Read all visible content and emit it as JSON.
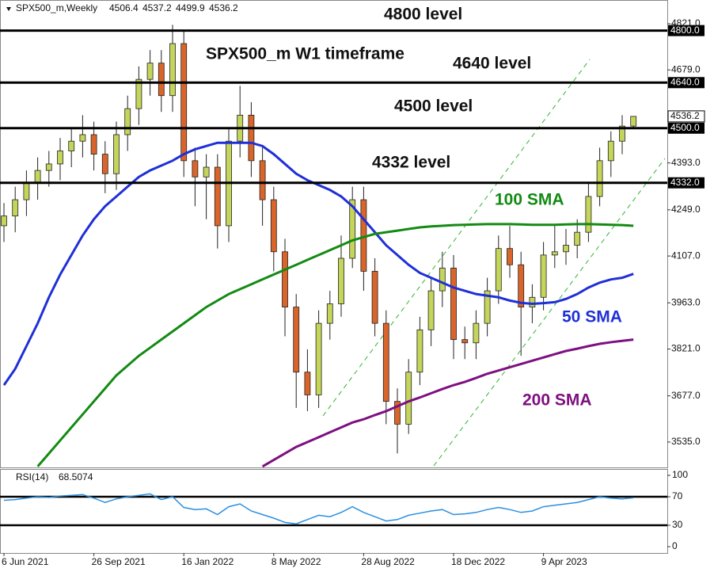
{
  "chart_data": [
    {
      "type": "candlestick",
      "title": "SPX500_m,Weekly",
      "categories": [
        "6 Jun 2021",
        null,
        null,
        null,
        null,
        null,
        null,
        null,
        "26 Sep 2021",
        null,
        null,
        null,
        null,
        null,
        null,
        null,
        "16 Jan 2022",
        null,
        null,
        null,
        null,
        null,
        null,
        null,
        "8 May 2022",
        null,
        null,
        null,
        null,
        null,
        null,
        null,
        "28 Aug 2022",
        null,
        null,
        null,
        null,
        null,
        null,
        null,
        "18 Dec 2022",
        null,
        null,
        null,
        null,
        null,
        null,
        null,
        "9 Apr 2023",
        null,
        null,
        null,
        null,
        null,
        null,
        null,
        null
      ],
      "open": [
        4200,
        4230,
        4280,
        4330,
        4370,
        4390,
        4430,
        4460,
        4480,
        4420,
        4360,
        4480,
        4560,
        4650,
        4700,
        4600,
        4760,
        4400,
        4350,
        4380,
        4200,
        4460,
        4540,
        4400,
        4280,
        4120,
        3950,
        3750,
        3680,
        3900,
        3960,
        4100,
        4280,
        4060,
        3900,
        3660,
        3590,
        3750,
        3880,
        4000,
        4070,
        3850,
        3840,
        3900,
        4000,
        4130,
        4080,
        3950,
        3980,
        4110,
        4120,
        4140,
        4180,
        4290,
        4400,
        4460,
        4506.4
      ],
      "high": [
        4270,
        4320,
        4370,
        4410,
        4430,
        4470,
        4500,
        4540,
        4520,
        4460,
        4520,
        4600,
        4690,
        4740,
        4740,
        4818,
        4800,
        4440,
        4420,
        4420,
        4500,
        4630,
        4580,
        4440,
        4320,
        4160,
        3990,
        3820,
        3940,
        4000,
        4170,
        4320,
        4320,
        4100,
        3940,
        3700,
        3790,
        3920,
        4040,
        4120,
        4110,
        3890,
        3940,
        4040,
        4170,
        4200,
        4120,
        4020,
        4150,
        4200,
        4190,
        4220,
        4330,
        4440,
        4490,
        4540,
        4537.2
      ],
      "low": [
        4150,
        4180,
        4230,
        4280,
        4320,
        4340,
        4380,
        4410,
        4370,
        4300,
        4310,
        4430,
        4510,
        4600,
        4550,
        4550,
        4350,
        4260,
        4220,
        4130,
        4150,
        4410,
        4350,
        4200,
        4060,
        3860,
        3640,
        3630,
        3640,
        3850,
        3920,
        4070,
        4000,
        3860,
        3590,
        3500,
        3560,
        3710,
        3830,
        3950,
        3790,
        3790,
        3790,
        3860,
        3960,
        4040,
        3800,
        3900,
        3940,
        4070,
        4080,
        4100,
        4150,
        4260,
        4350,
        4420,
        4499.9
      ],
      "close": [
        4230,
        4280,
        4330,
        4370,
        4390,
        4430,
        4460,
        4480,
        4420,
        4360,
        4480,
        4560,
        4650,
        4700,
        4600,
        4760,
        4400,
        4350,
        4380,
        4200,
        4460,
        4540,
        4400,
        4280,
        4120,
        3950,
        3750,
        3680,
        3900,
        3960,
        4100,
        4280,
        4060,
        3900,
        3660,
        3590,
        3750,
        3880,
        4000,
        4070,
        3850,
        3840,
        3900,
        4000,
        4130,
        4080,
        3950,
        3980,
        4110,
        4120,
        4140,
        4180,
        4290,
        4400,
        4460,
        4506.4,
        4536.2
      ],
      "up_color": "#c5d45a",
      "down_color": "#d9652a",
      "series": [
        {
          "name": "50 SMA",
          "color": "#1f2fd8",
          "values": [
            3710,
            3760,
            3830,
            3900,
            3980,
            4050,
            4110,
            4170,
            4220,
            4260,
            4290,
            4320,
            4350,
            4370,
            4385,
            4400,
            4420,
            4435,
            4445,
            4455,
            4455,
            4455,
            4455,
            4445,
            4420,
            4390,
            4360,
            4340,
            4325,
            4310,
            4290,
            4260,
            4220,
            4180,
            4140,
            4110,
            4080,
            4055,
            4040,
            4025,
            4010,
            4000,
            3990,
            3985,
            3980,
            3970,
            3963,
            3960,
            3962,
            3965,
            3975,
            3990,
            4010,
            4025,
            4035,
            4040,
            4052
          ]
        },
        {
          "name": "100 SMA",
          "color": "#138a13",
          "values": [
            null,
            null,
            null,
            3460,
            3500,
            3540,
            3580,
            3620,
            3660,
            3700,
            3740,
            3770,
            3800,
            3825,
            3850,
            3875,
            3900,
            3925,
            3950,
            3970,
            3990,
            4005,
            4020,
            4035,
            4050,
            4065,
            4080,
            4095,
            4110,
            4125,
            4140,
            4155,
            4165,
            4175,
            4180,
            4185,
            4190,
            4195,
            4198,
            4200,
            4202,
            4203,
            4204,
            4205,
            4205,
            4205,
            4204,
            4203,
            4203,
            4203,
            4204,
            4205,
            4205,
            4204,
            4203,
            4202,
            4200
          ]
        },
        {
          "name": "200 SMA",
          "color": "#7d1080",
          "values": [
            null,
            null,
            null,
            null,
            null,
            null,
            null,
            null,
            null,
            null,
            null,
            null,
            null,
            null,
            null,
            null,
            null,
            null,
            null,
            null,
            null,
            null,
            null,
            3460,
            3480,
            3500,
            3520,
            3535,
            3550,
            3565,
            3580,
            3595,
            3605,
            3618,
            3630,
            3645,
            3660,
            3672,
            3685,
            3698,
            3710,
            3720,
            3732,
            3745,
            3755,
            3765,
            3775,
            3785,
            3795,
            3805,
            3815,
            3822,
            3830,
            3837,
            3842,
            3846,
            3850
          ]
        }
      ],
      "levels": [
        {
          "value": 4800,
          "label": "4800.0"
        },
        {
          "value": 4640,
          "label": "4640.0"
        },
        {
          "value": 4500,
          "label": "4500.0"
        },
        {
          "value": 4332,
          "label": "4332.0"
        }
      ],
      "last_price_label": "4536.2",
      "annotations": [
        {
          "text": "4800 level",
          "color": "#111111"
        },
        {
          "text": "SPX500_m W1 timeframe",
          "color": "#111111"
        },
        {
          "text": "4640 level",
          "color": "#111111"
        },
        {
          "text": "4500 level",
          "color": "#111111"
        },
        {
          "text": "4332 level",
          "color": "#111111"
        },
        {
          "text": "100 SMA",
          "color": "#138a13"
        },
        {
          "text": "50 SMA",
          "color": "#1f2fd8"
        },
        {
          "text": "200 SMA",
          "color": "#7d1080"
        }
      ],
      "ylim": [
        3457,
        4894
      ],
      "yticks": [
        {
          "value": 4821,
          "label": "4821.0"
        },
        {
          "value": 4679,
          "label": "4679.0"
        },
        {
          "value": 4393,
          "label": "4393.0"
        },
        {
          "value": 4249,
          "label": "4249.0"
        },
        {
          "value": 4107,
          "label": "4107.0"
        },
        {
          "value": 3963,
          "label": "3963.0"
        },
        {
          "value": 3821,
          "label": "3821.0"
        },
        {
          "value": 3677,
          "label": "3677.0"
        },
        {
          "value": 3535,
          "label": "3535.0"
        }
      ]
    },
    {
      "type": "line",
      "title": "RSI(14)",
      "color": "#2b8fe0",
      "values": [
        65,
        66,
        68,
        70,
        69,
        71,
        72,
        73,
        68,
        62,
        67,
        70,
        72,
        74,
        66,
        70,
        55,
        52,
        53,
        45,
        56,
        60,
        50,
        45,
        40,
        34,
        32,
        38,
        44,
        42,
        48,
        56,
        48,
        42,
        36,
        38,
        44,
        47,
        50,
        52,
        45,
        46,
        48,
        52,
        55,
        52,
        48,
        50,
        56,
        58,
        60,
        62,
        66,
        70,
        68,
        67,
        68.5074
      ],
      "levels": [
        70,
        30
      ],
      "ylim": [
        -8.9,
        108.9
      ],
      "yticks": [
        100,
        70,
        30,
        0
      ]
    }
  ]
}
